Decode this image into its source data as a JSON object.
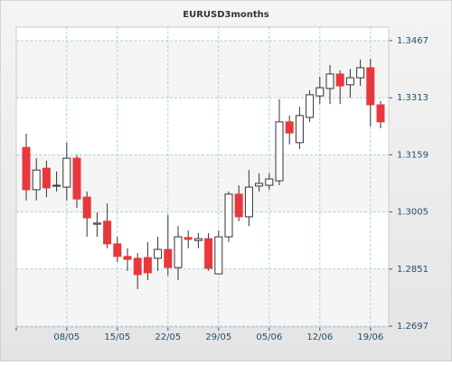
{
  "chart_data": {
    "type": "candlestick",
    "title": "EURUSD3months",
    "categories": [
      null,
      null,
      null,
      null,
      "08/05",
      null,
      null,
      null,
      null,
      "15/05",
      null,
      null,
      null,
      null,
      "22/05",
      null,
      null,
      null,
      null,
      "29/05",
      null,
      null,
      null,
      null,
      "05/06",
      null,
      null,
      null,
      null,
      "12/06",
      null,
      null,
      null,
      null,
      "19/06",
      null
    ],
    "open": [
      1.3179,
      1.3065,
      1.3123,
      1.3075,
      1.3072,
      1.315,
      1.3045,
      1.2972,
      1.298,
      1.2919,
      1.2885,
      1.288,
      1.2882,
      1.288,
      1.2904,
      1.2855,
      1.2936,
      1.2928,
      1.2933,
      1.2838,
      1.2938,
      1.3053,
      1.2992,
      1.3075,
      1.3077,
      1.3089,
      1.3248,
      1.3192,
      1.326,
      1.3318,
      1.3338,
      1.3377,
      1.3348,
      1.3367,
      1.3394,
      1.3294
    ],
    "high": [
      1.3216,
      1.315,
      1.3143,
      1.3114,
      1.3192,
      1.3158,
      1.306,
      1.3004,
      1.3028,
      1.2938,
      1.2907,
      1.2894,
      1.2924,
      1.2938,
      1.2997,
      1.2967,
      1.2955,
      1.2948,
      1.2948,
      1.2955,
      1.306,
      1.3077,
      1.3118,
      1.3109,
      1.3109,
      1.3309,
      1.3265,
      1.3289,
      1.3333,
      1.337,
      1.3401,
      1.3387,
      1.3391,
      1.3416,
      1.3418,
      1.3304
    ],
    "low": [
      1.3036,
      1.3036,
      1.3045,
      1.306,
      1.3036,
      1.3016,
      1.2938,
      1.2938,
      1.2907,
      1.287,
      1.2846,
      1.2797,
      1.2821,
      1.2846,
      1.2833,
      1.2821,
      1.2907,
      1.2907,
      1.2846,
      1.2838,
      1.2924,
      1.298,
      1.2967,
      1.306,
      1.3065,
      1.3077,
      1.3187,
      1.3175,
      1.3248,
      1.3296,
      1.3296,
      1.3296,
      1.3313,
      1.3345,
      1.3235,
      1.3231
    ],
    "close": [
      1.3065,
      1.3118,
      1.307,
      1.3077,
      1.315,
      1.304,
      1.2989,
      1.2975,
      1.2919,
      1.2885,
      1.2877,
      1.2836,
      1.2841,
      1.2904,
      1.2855,
      1.2938,
      1.2931,
      1.2933,
      1.2853,
      1.2938,
      1.3053,
      1.2992,
      1.3072,
      1.3082,
      1.3094,
      1.3248,
      1.3218,
      1.3265,
      1.3321,
      1.334,
      1.3377,
      1.3345,
      1.3367,
      1.3394,
      1.3294,
      1.3248
    ],
    "up_color": "#ffffff",
    "down_color": "#e8383d",
    "ylim": [
      1.2697,
      1.3467
    ],
    "yticks": [
      1.2697,
      1.2851,
      1.3005,
      1.3159,
      1.3313,
      1.3467
    ],
    "grid": true
  }
}
